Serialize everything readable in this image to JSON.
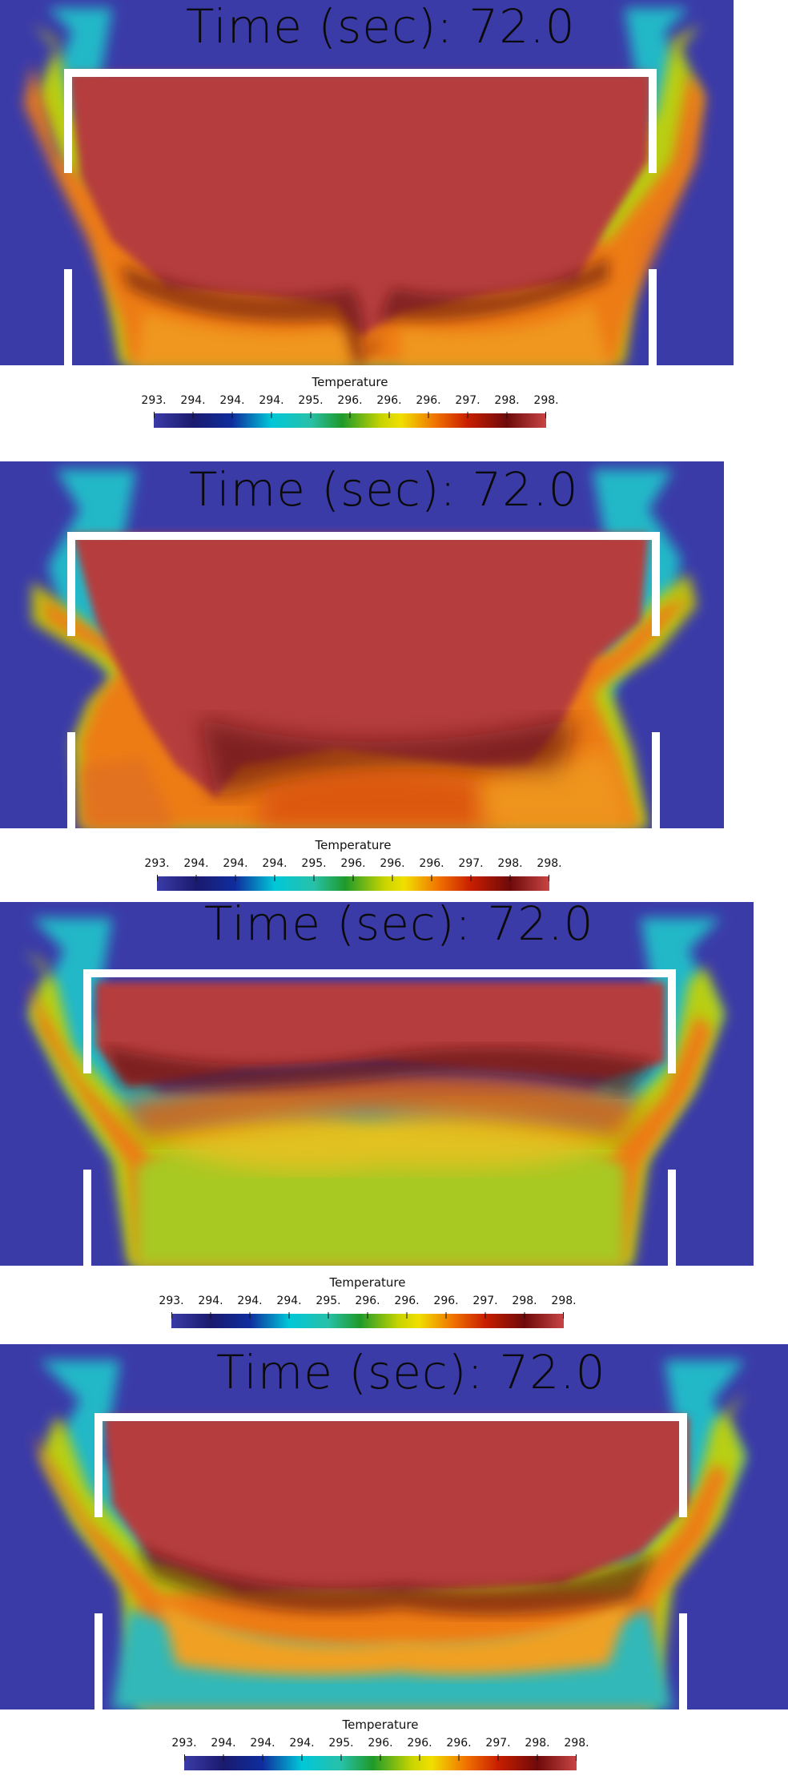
{
  "colormap": {
    "name": "rainbow-uniform",
    "stops": [
      "#3b3ba8",
      "#1a1a6e",
      "#0f2d9e",
      "#00c8d8",
      "#28c0a8",
      "#1e9a2a",
      "#c8d400",
      "#f0e000",
      "#f07000",
      "#c81e00",
      "#6e0a0a",
      "#c84444"
    ],
    "plot_background": "#3b3ba8",
    "hot_color": "#b53c3c",
    "wall_color": "#ffffff"
  },
  "panels": [
    {
      "title": "Time (sec): 72.0",
      "legend": {
        "title": "Temperature",
        "tick_labels": [
          "293.",
          "294.",
          "294.",
          "294.",
          "295.",
          "296.",
          "296.",
          "296.",
          "297.",
          "298.",
          "298."
        ]
      }
    },
    {
      "title": "Time (sec): 72.0",
      "legend": {
        "title": "Temperature",
        "tick_labels": [
          "293.",
          "294.",
          "294.",
          "294.",
          "295.",
          "296.",
          "296.",
          "296.",
          "297.",
          "298.",
          "298."
        ]
      }
    },
    {
      "title": "Time (sec): 72.0",
      "legend": {
        "title": "Temperature",
        "tick_labels": [
          "293.",
          "294.",
          "294.",
          "294.",
          "295.",
          "296.",
          "296.",
          "296.",
          "297.",
          "298.",
          "298."
        ]
      }
    },
    {
      "title": "Time (sec): 72.0",
      "legend": {
        "title": "Temperature",
        "tick_labels": [
          "293.",
          "294.",
          "294.",
          "294.",
          "295.",
          "296.",
          "296.",
          "296.",
          "297.",
          "298.",
          "298."
        ]
      }
    }
  ]
}
